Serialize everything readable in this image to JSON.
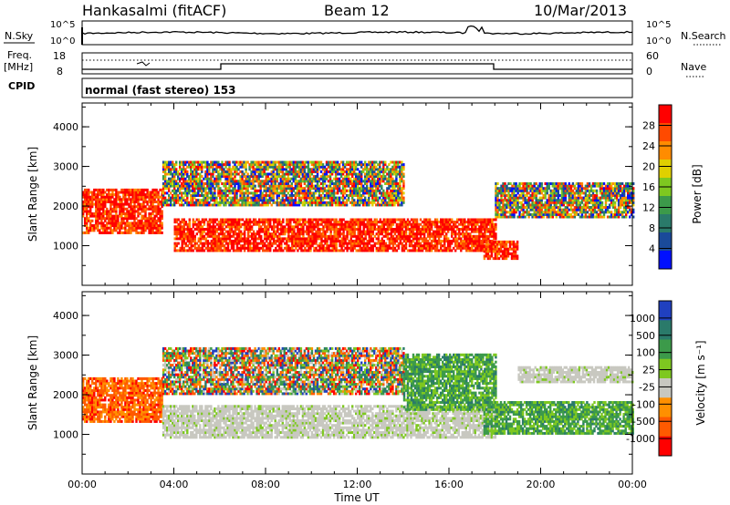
{
  "header": {
    "station": "Hankasalmi (fitACF)",
    "beam": "Beam 12",
    "date": "10/Mar/2013"
  },
  "strip_panels": {
    "nsky_label": "N.Sky",
    "nsearch_label": "N.Search",
    "noise_ticks_left": [
      "10^5",
      "10^0"
    ],
    "noise_ticks_right": [
      "10^5",
      "10^0"
    ],
    "freq_label_1": "Freq.",
    "freq_label_2": "[MHz]",
    "freq_ticks": [
      "18",
      "8"
    ],
    "nave_ticks": [
      "60",
      "0"
    ],
    "nave_label": "Nave",
    "cpid_label": "CPID",
    "cpid_text": "normal (fast stereo) 153"
  },
  "chart_data": [
    {
      "type": "heatmap",
      "name": "power",
      "xlabel": "Time UT",
      "ylabel": "Slant Range [km]",
      "xticks": [
        "00:00",
        "04:00",
        "08:00",
        "12:00",
        "16:00",
        "20:00",
        "00:00"
      ],
      "yticks": [
        "1000",
        "2000",
        "3000",
        "4000"
      ],
      "colorbar_label": "Power [dB]",
      "colorbar_ticks": [
        "28",
        "24",
        "20",
        "16",
        "12",
        "8",
        "4"
      ],
      "colors": [
        "#ff0000",
        "#ff4a00",
        "#ff8c00",
        "#e0d000",
        "#7ec820",
        "#3c9a4a",
        "#2a7a6a",
        "#1a4a9a",
        "#0010ff"
      ],
      "bands": [
        {
          "x": [
            0,
            3.5
          ],
          "y": [
            1300,
            2400
          ],
          "level": "high"
        },
        {
          "x": [
            4,
            18
          ],
          "y": [
            850,
            1650
          ],
          "level": "high"
        },
        {
          "x": [
            3.5,
            14
          ],
          "y": [
            2000,
            3100
          ],
          "level": "mixed"
        },
        {
          "x": [
            17.5,
            19
          ],
          "y": [
            650,
            1100
          ],
          "level": "high"
        },
        {
          "x": [
            18,
            24
          ],
          "y": [
            1700,
            2600
          ],
          "level": "mixed"
        }
      ]
    },
    {
      "type": "heatmap",
      "name": "velocity",
      "xlabel": "Time UT",
      "ylabel": "Slant Range [km]",
      "xticks": [
        "00:00",
        "04:00",
        "08:00",
        "12:00",
        "16:00",
        "20:00",
        "00:00"
      ],
      "yticks": [
        "1000",
        "2000",
        "3000",
        "4000"
      ],
      "colorbar_label": "Velocity [m s⁻¹]",
      "colorbar_ticks": [
        "1000",
        "500",
        "100",
        "25",
        "-25",
        "-100",
        "-500",
        "-1000"
      ],
      "colors": [
        "#2040c0",
        "#2a7a6a",
        "#3c9a4a",
        "#7ec820",
        "#c8c8c0",
        "#ff9000",
        "#ff5a00",
        "#ff0000"
      ],
      "bands": [
        {
          "x": [
            0,
            3.5
          ],
          "y": [
            1300,
            2400
          ],
          "level": "negative"
        },
        {
          "x": [
            3.5,
            18
          ],
          "y": [
            900,
            1700
          ],
          "level": "ground"
        },
        {
          "x": [
            3.5,
            14
          ],
          "y": [
            2000,
            3200
          ],
          "level": "mixed"
        },
        {
          "x": [
            14,
            18
          ],
          "y": [
            1600,
            3000
          ],
          "level": "positive"
        },
        {
          "x": [
            17.5,
            24
          ],
          "y": [
            1000,
            1800
          ],
          "level": "positive"
        },
        {
          "x": [
            19,
            24
          ],
          "y": [
            2300,
            2700
          ],
          "level": "ground"
        }
      ]
    }
  ]
}
